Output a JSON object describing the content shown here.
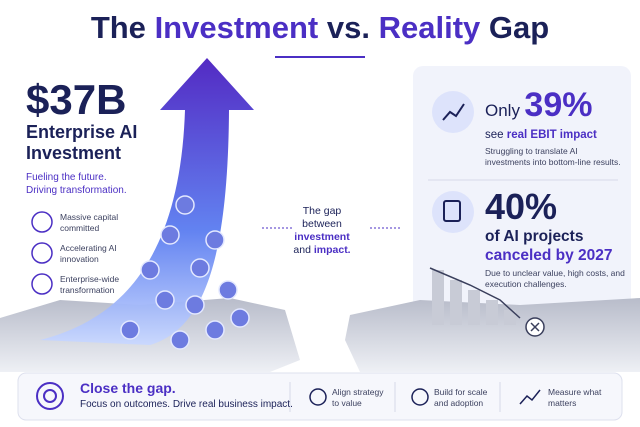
{
  "header": {
    "title": {
      "part1": "The",
      "part2": "Investment",
      "part3": "vs.",
      "part4": "Reality",
      "part5": "Gap"
    }
  },
  "left": {
    "amount": "$37B",
    "heading": "Enterprise AI Investment",
    "tagline": "Fueling the future. Driving transformation.",
    "items": [
      "Massive capital committed",
      "Accelerating AI innovation",
      "Enterprise-wide transformation"
    ]
  },
  "middle": {
    "line1": "The gap between",
    "highlight1": "investment",
    "and": "and",
    "highlight2": "impact."
  },
  "cards": [
    {
      "prefix": "Only",
      "figure": "39%",
      "see": "see",
      "emphasis": "real EBIT impact",
      "note": "Struggling to translate AI investments into bottom-line results."
    },
    {
      "figure": "40%",
      "subject": "of AI projects",
      "emphasis": "canceled by 2027",
      "note": "Due to unclear value, high costs, and execution challenges."
    }
  ],
  "footer": {
    "headline": "Close the gap.",
    "subline": "Focus on outcomes. Drive real business impact.",
    "items": [
      "Align strategy to value",
      "Build for scale and adoption",
      "Measure what matters"
    ]
  }
}
